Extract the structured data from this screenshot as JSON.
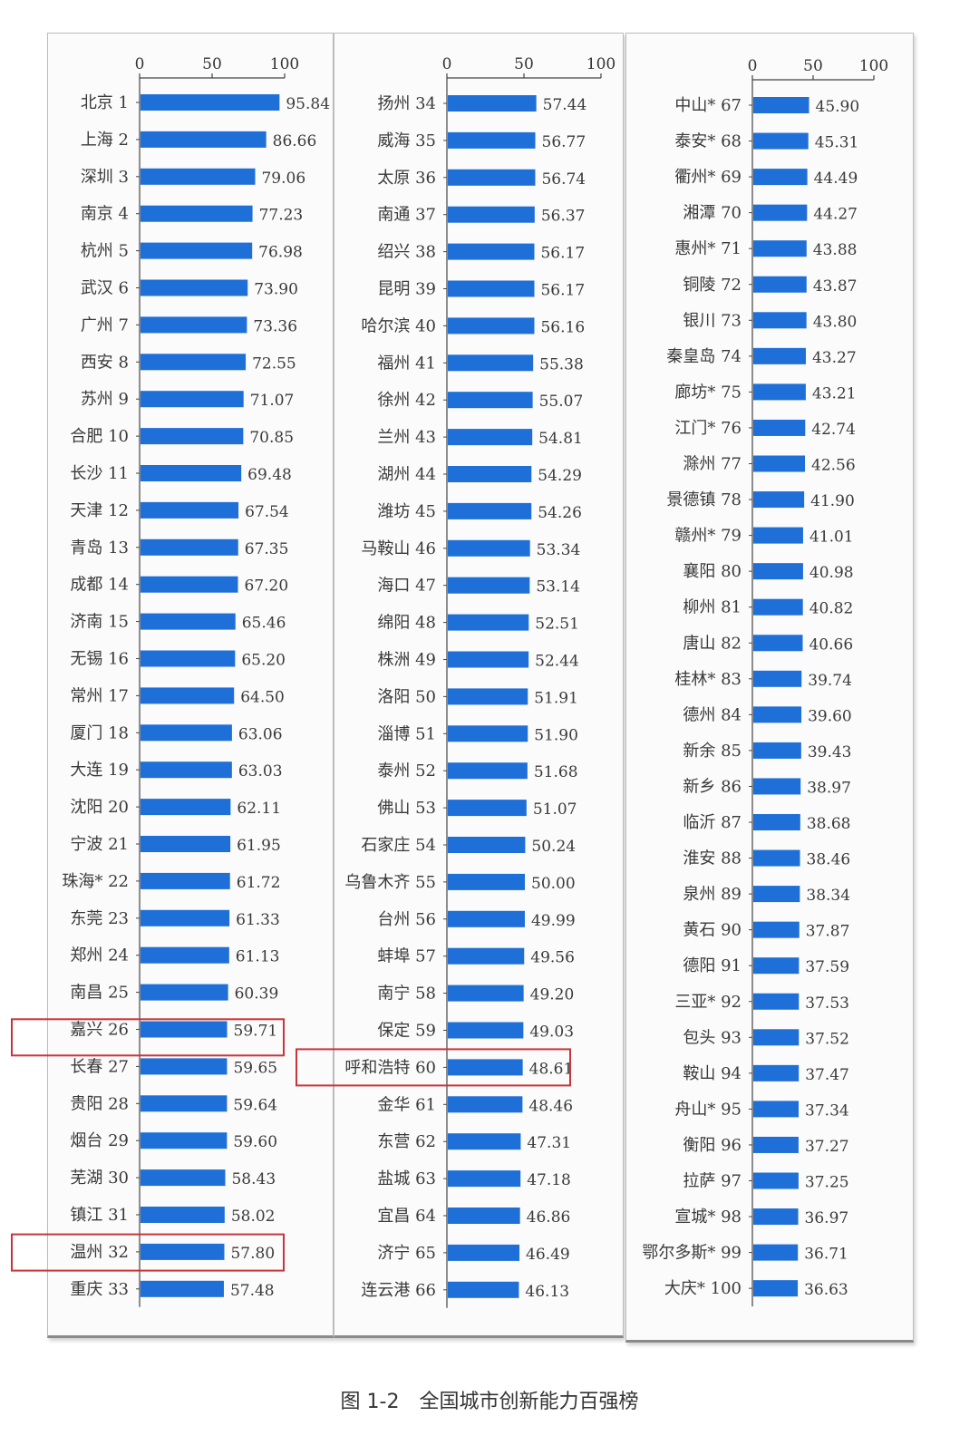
{
  "caption": "图 1-2　全国城市创新能力百强榜",
  "colors": {
    "bar": "#1f6fd8",
    "highlight_box": "#c8343a",
    "axis": "#444444"
  },
  "chart_data": {
    "type": "bar",
    "orientation": "horizontal",
    "title": "",
    "xlim": [
      0,
      100
    ],
    "xticks": [
      0,
      50,
      100
    ],
    "panels": [
      {
        "entries": [
          {
            "label": "北京 1",
            "value": 95.84,
            "value_label": "95.84"
          },
          {
            "label": "上海 2",
            "value": 86.66,
            "value_label": "86.66"
          },
          {
            "label": "深圳 3",
            "value": 79.06,
            "value_label": "79.06"
          },
          {
            "label": "南京 4",
            "value": 77.23,
            "value_label": "77.23"
          },
          {
            "label": "杭州 5",
            "value": 76.98,
            "value_label": "76.98"
          },
          {
            "label": "武汉 6",
            "value": 73.9,
            "value_label": "73.90"
          },
          {
            "label": "广州 7",
            "value": 73.36,
            "value_label": "73.36"
          },
          {
            "label": "西安 8",
            "value": 72.55,
            "value_label": "72.55"
          },
          {
            "label": "苏州 9",
            "value": 71.07,
            "value_label": "71.07"
          },
          {
            "label": "合肥 10",
            "value": 70.85,
            "value_label": "70.85"
          },
          {
            "label": "长沙 11",
            "value": 69.48,
            "value_label": "69.48"
          },
          {
            "label": "天津 12",
            "value": 67.54,
            "value_label": "67.54"
          },
          {
            "label": "青岛 13",
            "value": 67.35,
            "value_label": "67.35"
          },
          {
            "label": "成都 14",
            "value": 67.2,
            "value_label": "67.20"
          },
          {
            "label": "济南 15",
            "value": 65.46,
            "value_label": "65.46"
          },
          {
            "label": "无锡 16",
            "value": 65.2,
            "value_label": "65.20"
          },
          {
            "label": "常州 17",
            "value": 64.5,
            "value_label": "64.50"
          },
          {
            "label": "厦门 18",
            "value": 63.06,
            "value_label": "63.06"
          },
          {
            "label": "大连 19",
            "value": 63.03,
            "value_label": "63.03"
          },
          {
            "label": "沈阳 20",
            "value": 62.11,
            "value_label": "62.11"
          },
          {
            "label": "宁波 21",
            "value": 61.95,
            "value_label": "61.95"
          },
          {
            "label": "珠海* 22",
            "value": 61.72,
            "value_label": "61.72"
          },
          {
            "label": "东莞 23",
            "value": 61.33,
            "value_label": "61.33"
          },
          {
            "label": "郑州 24",
            "value": 61.13,
            "value_label": "61.13"
          },
          {
            "label": "南昌 25",
            "value": 60.39,
            "value_label": "60.39"
          },
          {
            "label": "嘉兴 26",
            "value": 59.71,
            "value_label": "59.71"
          },
          {
            "label": "长春 27",
            "value": 59.65,
            "value_label": "59.65"
          },
          {
            "label": "贵阳 28",
            "value": 59.64,
            "value_label": "59.64"
          },
          {
            "label": "烟台 29",
            "value": 59.6,
            "value_label": "59.60"
          },
          {
            "label": "芜湖 30",
            "value": 58.43,
            "value_label": "58.43"
          },
          {
            "label": "镇江 31",
            "value": 58.02,
            "value_label": "58.02"
          },
          {
            "label": "温州 32",
            "value": 57.8,
            "value_label": "57.80"
          },
          {
            "label": "重庆 33",
            "value": 57.48,
            "value_label": "57.48"
          }
        ]
      },
      {
        "entries": [
          {
            "label": "扬州 34",
            "value": 57.44,
            "value_label": "57.44"
          },
          {
            "label": "威海 35",
            "value": 56.77,
            "value_label": "56.77"
          },
          {
            "label": "太原 36",
            "value": 56.74,
            "value_label": "56.74"
          },
          {
            "label": "南通 37",
            "value": 56.37,
            "value_label": "56.37"
          },
          {
            "label": "绍兴 38",
            "value": 56.17,
            "value_label": "56.17"
          },
          {
            "label": "昆明 39",
            "value": 56.17,
            "value_label": "56.17"
          },
          {
            "label": "哈尔滨 40",
            "value": 56.16,
            "value_label": "56.16"
          },
          {
            "label": "福州 41",
            "value": 55.38,
            "value_label": "55.38"
          },
          {
            "label": "徐州 42",
            "value": 55.07,
            "value_label": "55.07"
          },
          {
            "label": "兰州 43",
            "value": 54.81,
            "value_label": "54.81"
          },
          {
            "label": "湖州 44",
            "value": 54.29,
            "value_label": "54.29"
          },
          {
            "label": "潍坊 45",
            "value": 54.26,
            "value_label": "54.26"
          },
          {
            "label": "马鞍山 46",
            "value": 53.34,
            "value_label": "53.34"
          },
          {
            "label": "海口 47",
            "value": 53.14,
            "value_label": "53.14"
          },
          {
            "label": "绵阳 48",
            "value": 52.51,
            "value_label": "52.51"
          },
          {
            "label": "株洲 49",
            "value": 52.44,
            "value_label": "52.44"
          },
          {
            "label": "洛阳 50",
            "value": 51.91,
            "value_label": "51.91"
          },
          {
            "label": "淄博 51",
            "value": 51.9,
            "value_label": "51.90"
          },
          {
            "label": "泰州 52",
            "value": 51.68,
            "value_label": "51.68"
          },
          {
            "label": "佛山 53",
            "value": 51.07,
            "value_label": "51.07"
          },
          {
            "label": "石家庄 54",
            "value": 50.24,
            "value_label": "50.24"
          },
          {
            "label": "乌鲁木齐 55",
            "value": 50.0,
            "value_label": "50.00"
          },
          {
            "label": "台州 56",
            "value": 49.99,
            "value_label": "49.99"
          },
          {
            "label": "蚌埠 57",
            "value": 49.56,
            "value_label": "49.56"
          },
          {
            "label": "南宁 58",
            "value": 49.2,
            "value_label": "49.20"
          },
          {
            "label": "保定 59",
            "value": 49.03,
            "value_label": "49.03"
          },
          {
            "label": "呼和浩特 60",
            "value": 48.61,
            "value_label": "48.61",
            "highlighted": true
          },
          {
            "label": "金华 61",
            "value": 48.46,
            "value_label": "48.46"
          },
          {
            "label": "东营 62",
            "value": 47.31,
            "value_label": "47.31"
          },
          {
            "label": "盐城 63",
            "value": 47.18,
            "value_label": "47.18"
          },
          {
            "label": "宜昌 64",
            "value": 46.86,
            "value_label": "46.86"
          },
          {
            "label": "济宁 65",
            "value": 46.49,
            "value_label": "46.49"
          },
          {
            "label": "连云港 66",
            "value": 46.13,
            "value_label": "46.13"
          }
        ]
      },
      {
        "entries": [
          {
            "label": "中山* 67",
            "value": 45.9,
            "value_label": "45.90"
          },
          {
            "label": "泰安* 68",
            "value": 45.31,
            "value_label": "45.31"
          },
          {
            "label": "衢州* 69",
            "value": 44.49,
            "value_label": "44.49"
          },
          {
            "label": "湘潭 70",
            "value": 44.27,
            "value_label": "44.27"
          },
          {
            "label": "惠州* 71",
            "value": 43.88,
            "value_label": "43.88"
          },
          {
            "label": "铜陵 72",
            "value": 43.87,
            "value_label": "43.87"
          },
          {
            "label": "银川 73",
            "value": 43.8,
            "value_label": "43.80"
          },
          {
            "label": "秦皇岛 74",
            "value": 43.27,
            "value_label": "43.27"
          },
          {
            "label": "廊坊* 75",
            "value": 43.21,
            "value_label": "43.21"
          },
          {
            "label": "江门* 76",
            "value": 42.74,
            "value_label": "42.74"
          },
          {
            "label": "滁州 77",
            "value": 42.56,
            "value_label": "42.56"
          },
          {
            "label": "景德镇 78",
            "value": 41.9,
            "value_label": "41.90"
          },
          {
            "label": "赣州* 79",
            "value": 41.01,
            "value_label": "41.01"
          },
          {
            "label": "襄阳 80",
            "value": 40.98,
            "value_label": "40.98"
          },
          {
            "label": "柳州 81",
            "value": 40.82,
            "value_label": "40.82"
          },
          {
            "label": "唐山 82",
            "value": 40.66,
            "value_label": "40.66"
          },
          {
            "label": "桂林* 83",
            "value": 39.74,
            "value_label": "39.74"
          },
          {
            "label": "德州 84",
            "value": 39.6,
            "value_label": "39.60"
          },
          {
            "label": "新余 85",
            "value": 39.43,
            "value_label": "39.43"
          },
          {
            "label": "新乡 86",
            "value": 38.97,
            "value_label": "38.97"
          },
          {
            "label": "临沂 87",
            "value": 38.68,
            "value_label": "38.68"
          },
          {
            "label": "淮安 88",
            "value": 38.46,
            "value_label": "38.46"
          },
          {
            "label": "泉州 89",
            "value": 38.34,
            "value_label": "38.34"
          },
          {
            "label": "黄石 90",
            "value": 37.87,
            "value_label": "37.87"
          },
          {
            "label": "德阳 91",
            "value": 37.59,
            "value_label": "37.59"
          },
          {
            "label": "三亚* 92",
            "value": 37.53,
            "value_label": "37.53"
          },
          {
            "label": "包头 93",
            "value": 37.52,
            "value_label": "37.52",
            "highlighted": true
          },
          {
            "label": "鞍山 94",
            "value": 37.47,
            "value_label": "37.47"
          },
          {
            "label": "舟山* 95",
            "value": 37.34,
            "value_label": "37.34"
          },
          {
            "label": "衡阳 96",
            "value": 37.27,
            "value_label": "37.27"
          },
          {
            "label": "拉萨 97",
            "value": 37.25,
            "value_label": "37.25"
          },
          {
            "label": "宣城* 98",
            "value": 36.97,
            "value_label": "36.97"
          },
          {
            "label": "鄂尔多斯* 99",
            "value": 36.71,
            "value_label": "36.71",
            "highlighted": true
          },
          {
            "label": "大庆* 100",
            "value": 36.63,
            "value_label": "36.63"
          }
        ]
      }
    ]
  }
}
